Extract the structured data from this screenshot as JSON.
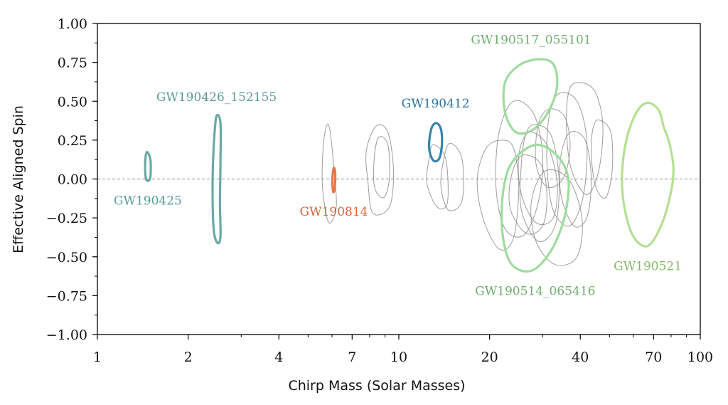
{
  "chart_data": {
    "type": "scatter",
    "title": "",
    "xlabel": "Chirp Mass (Solar Masses)",
    "ylabel": "Effective Aligned Spin",
    "xscale": "log",
    "xlim": [
      1,
      100
    ],
    "ylim": [
      -1.0,
      1.0
    ],
    "grid": false,
    "reference_line": {
      "y": 0.0,
      "style": "dashed",
      "color": "#888888"
    },
    "x_ticks": [
      {
        "value": 1,
        "label": "1"
      },
      {
        "value": 2,
        "label": "2"
      },
      {
        "value": 4,
        "label": "4"
      },
      {
        "value": 7,
        "label": "7"
      },
      {
        "value": 10,
        "label": "10"
      },
      {
        "value": 20,
        "label": "20"
      },
      {
        "value": 40,
        "label": "40"
      },
      {
        "value": 70,
        "label": "70"
      },
      {
        "value": 100,
        "label": "100"
      }
    ],
    "y_ticks": [
      {
        "value": 1.0,
        "label": "1.00"
      },
      {
        "value": 0.75,
        "label": "0.75"
      },
      {
        "value": 0.5,
        "label": "0.50"
      },
      {
        "value": 0.25,
        "label": "0.25"
      },
      {
        "value": 0.0,
        "label": "0.00"
      },
      {
        "value": -0.25,
        "label": "−0.25"
      },
      {
        "value": -0.5,
        "label": "−0.50"
      },
      {
        "value": -0.75,
        "label": "−0.75"
      },
      {
        "value": -1.0,
        "label": "−1.00"
      }
    ],
    "highlighted_events": [
      {
        "name": "GW190425",
        "color": "#6aa9a6",
        "contour": [
          [
            1.47,
            0.17
          ],
          [
            1.5,
            0.12
          ],
          [
            1.5,
            0.02
          ],
          [
            1.48,
            -0.01
          ],
          [
            1.45,
            0.0
          ],
          [
            1.44,
            0.08
          ],
          [
            1.45,
            0.16
          ]
        ]
      },
      {
        "name": "GW190426_152155",
        "color": "#6aa9a6",
        "contour": [
          [
            2.48,
            0.4
          ],
          [
            2.56,
            0.36
          ],
          [
            2.56,
            0.1
          ],
          [
            2.55,
            -0.15
          ],
          [
            2.56,
            -0.37
          ],
          [
            2.5,
            -0.41
          ],
          [
            2.43,
            -0.32
          ],
          [
            2.41,
            -0.05
          ],
          [
            2.43,
            0.2
          ]
        ]
      },
      {
        "name": "GW190814",
        "color": "#e8774a",
        "contour": [
          [
            6.08,
            0.07
          ],
          [
            6.15,
            0.04
          ],
          [
            6.13,
            -0.06
          ],
          [
            6.05,
            -0.08
          ],
          [
            6.02,
            0.0
          ]
        ]
      },
      {
        "name": "GW190412",
        "color": "#3a82ad",
        "contour": [
          [
            13.3,
            0.36
          ],
          [
            13.8,
            0.32
          ],
          [
            13.9,
            0.22
          ],
          [
            13.6,
            0.13
          ],
          [
            13.0,
            0.12
          ],
          [
            12.6,
            0.2
          ],
          [
            12.8,
            0.32
          ]
        ]
      },
      {
        "name": "GW190517_055101",
        "color": "#9fdb9f",
        "contour": [
          [
            25.0,
            0.73
          ],
          [
            29.0,
            0.77
          ],
          [
            32.5,
            0.74
          ],
          [
            33.5,
            0.6
          ],
          [
            31.5,
            0.44
          ],
          [
            28.0,
            0.32
          ],
          [
            24.5,
            0.3
          ],
          [
            22.5,
            0.43
          ],
          [
            22.5,
            0.62
          ]
        ]
      },
      {
        "name": "GW190514_065416",
        "color": "#9fdb9f",
        "contour": [
          [
            28.5,
            0.22
          ],
          [
            33.5,
            0.15
          ],
          [
            36.5,
            0.0
          ],
          [
            35.5,
            -0.24
          ],
          [
            32.0,
            -0.46
          ],
          [
            27.5,
            -0.59
          ],
          [
            23.5,
            -0.54
          ],
          [
            22.0,
            -0.32
          ],
          [
            22.3,
            -0.05
          ],
          [
            24.0,
            0.12
          ]
        ]
      },
      {
        "name": "GW190521",
        "color": "#b7df93",
        "contour": [
          [
            67.0,
            0.49
          ],
          [
            73.0,
            0.44
          ],
          [
            75.5,
            0.34
          ],
          [
            79.0,
            0.23
          ],
          [
            81.5,
            0.07
          ],
          [
            80.0,
            -0.08
          ],
          [
            74.5,
            -0.29
          ],
          [
            67.0,
            -0.43
          ],
          [
            60.0,
            -0.37
          ],
          [
            56.0,
            -0.18
          ],
          [
            55.0,
            0.03
          ],
          [
            57.0,
            0.26
          ],
          [
            61.5,
            0.43
          ]
        ]
      }
    ],
    "background_events": [
      {
        "contour": [
          [
            5.78,
            0.35
          ],
          [
            5.92,
            0.3
          ],
          [
            6.1,
            0.05
          ],
          [
            6.2,
            -0.18
          ],
          [
            5.85,
            -0.28
          ],
          [
            5.58,
            -0.05
          ],
          [
            5.62,
            0.22
          ]
        ]
      },
      {
        "contour": [
          [
            8.4,
            0.34
          ],
          [
            9.2,
            0.3
          ],
          [
            9.6,
            0.05
          ],
          [
            9.3,
            -0.18
          ],
          [
            8.2,
            -0.22
          ],
          [
            7.9,
            -0.02
          ],
          [
            7.8,
            0.18
          ]
        ]
      },
      {
        "contour": [
          [
            8.6,
            0.27
          ],
          [
            9.2,
            0.22
          ],
          [
            9.3,
            0.0
          ],
          [
            8.9,
            -0.12
          ],
          [
            8.3,
            -0.05
          ],
          [
            8.3,
            0.15
          ]
        ]
      },
      {
        "contour": [
          [
            13.0,
            0.22
          ],
          [
            14.3,
            0.13
          ],
          [
            14.5,
            -0.15
          ],
          [
            13.4,
            -0.18
          ],
          [
            12.4,
            -0.03
          ],
          [
            12.6,
            0.13
          ]
        ]
      },
      {
        "contour": [
          [
            14.8,
            0.23
          ],
          [
            16.2,
            0.13
          ],
          [
            16.2,
            -0.14
          ],
          [
            14.6,
            -0.2
          ],
          [
            13.8,
            -0.05
          ],
          [
            14.1,
            0.13
          ]
        ]
      },
      {
        "contour": [
          [
            22.0,
            0.25
          ],
          [
            24.0,
            0.2
          ],
          [
            25.0,
            -0.05
          ],
          [
            24.0,
            -0.38
          ],
          [
            21.5,
            -0.45
          ],
          [
            19.0,
            -0.25
          ],
          [
            18.2,
            0.0
          ],
          [
            19.5,
            0.2
          ]
        ]
      },
      {
        "contour": [
          [
            24.0,
            0.5
          ],
          [
            28.0,
            0.42
          ],
          [
            30.0,
            0.15
          ],
          [
            29.0,
            -0.15
          ],
          [
            26.0,
            -0.36
          ],
          [
            22.5,
            -0.32
          ],
          [
            21.0,
            -0.05
          ],
          [
            21.5,
            0.3
          ]
        ]
      },
      {
        "contour": [
          [
            28.5,
            0.35
          ],
          [
            32.0,
            0.28
          ],
          [
            34.0,
            0.0
          ],
          [
            33.0,
            -0.3
          ],
          [
            29.0,
            -0.4
          ],
          [
            25.5,
            -0.2
          ],
          [
            25.5,
            0.1
          ],
          [
            26.5,
            0.3
          ]
        ]
      },
      {
        "contour": [
          [
            34.0,
            0.55
          ],
          [
            39.0,
            0.5
          ],
          [
            42.0,
            0.25
          ],
          [
            41.0,
            -0.1
          ],
          [
            37.0,
            -0.3
          ],
          [
            32.5,
            -0.2
          ],
          [
            31.0,
            0.1
          ],
          [
            31.5,
            0.4
          ]
        ]
      },
      {
        "contour": [
          [
            39.0,
            0.62
          ],
          [
            44.5,
            0.57
          ],
          [
            47.5,
            0.35
          ],
          [
            46.0,
            0.05
          ],
          [
            42.0,
            -0.1
          ],
          [
            37.5,
            0.05
          ],
          [
            36.0,
            0.3
          ],
          [
            36.5,
            0.55
          ]
        ]
      },
      {
        "contour": [
          [
            46.0,
            0.38
          ],
          [
            50.5,
            0.3
          ],
          [
            51.0,
            0.05
          ],
          [
            48.5,
            -0.12
          ],
          [
            45.0,
            -0.05
          ],
          [
            43.5,
            0.15
          ],
          [
            44.0,
            0.32
          ]
        ]
      },
      {
        "contour": [
          [
            30.5,
            0.05
          ],
          [
            36.5,
            0.0
          ],
          [
            40.5,
            -0.25
          ],
          [
            39.0,
            -0.5
          ],
          [
            33.0,
            -0.55
          ],
          [
            28.5,
            -0.4
          ],
          [
            27.5,
            -0.15
          ]
        ]
      },
      {
        "contour": [
          [
            25.5,
            0.15
          ],
          [
            29.5,
            0.1
          ],
          [
            31.0,
            -0.1
          ],
          [
            30.0,
            -0.3
          ],
          [
            26.5,
            -0.35
          ],
          [
            23.5,
            -0.2
          ],
          [
            23.5,
            0.0
          ]
        ]
      },
      {
        "contour": [
          [
            31.5,
            0.45
          ],
          [
            35.5,
            0.4
          ],
          [
            37.0,
            0.2
          ],
          [
            35.0,
            0.0
          ],
          [
            31.0,
            -0.05
          ],
          [
            28.5,
            0.1
          ],
          [
            29.0,
            0.35
          ]
        ]
      },
      {
        "contour": [
          [
            37.0,
            0.3
          ],
          [
            41.5,
            0.25
          ],
          [
            43.5,
            0.0
          ],
          [
            42.0,
            -0.25
          ],
          [
            38.0,
            -0.3
          ],
          [
            34.5,
            -0.1
          ],
          [
            34.5,
            0.15
          ]
        ]
      },
      {
        "contour": [
          [
            27.0,
            0.3
          ],
          [
            31.0,
            0.22
          ],
          [
            33.5,
            -0.02
          ],
          [
            32.5,
            -0.25
          ],
          [
            28.5,
            -0.28
          ],
          [
            25.5,
            -0.1
          ],
          [
            25.0,
            0.15
          ]
        ]
      }
    ]
  }
}
